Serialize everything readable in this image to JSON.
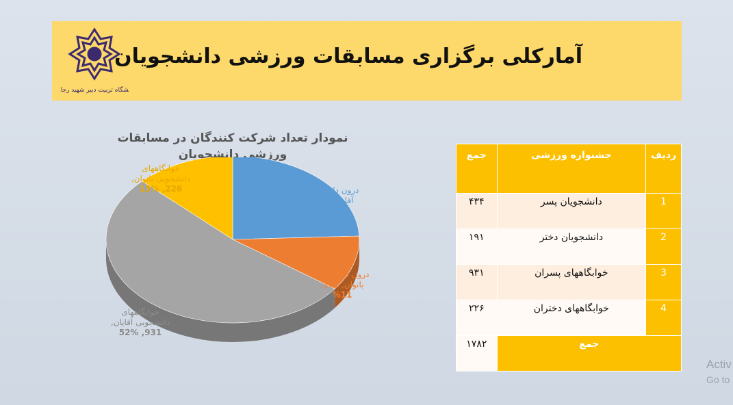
{
  "header": {
    "title": "آمارکلی برگزاری مسابقات ورزشی دانشجویان",
    "logo_text": "دانشگاه تربیت دبیر شهید رجایی"
  },
  "colors": {
    "header_bg": "#fdd86a",
    "table_header": "#fdc000",
    "slice_blue": "#5b9bd5",
    "slice_orange": "#ed7d31",
    "slice_gray": "#a5a5a5",
    "slice_yellow": "#ffc000",
    "logo": "#3b2a6e"
  },
  "chart_data": {
    "type": "pie",
    "title": "نمودار تعداد شرکت کنندگان در مسابقات ورزشی دانشجویان",
    "slices": [
      {
        "label": "درون دانشگاهی آقایان",
        "value": 434,
        "percent": "24%",
        "text1": "درون دانشگاهی",
        "text2": "آقایان, 434,",
        "text3": "%24"
      },
      {
        "label": "درون دانشگاهی بانوان",
        "value": 191,
        "percent": "11%",
        "text1": "درون دانشگاهی",
        "text2": "بانوان, 191,",
        "text3": "%11"
      },
      {
        "label": "خوابگاههای دانشجویی آقایان",
        "value": 931,
        "percent": "52%",
        "text1": "خوابگاههای",
        "text2": "دانشجویی آقایان,",
        "text3": "931, 52%"
      },
      {
        "label": "خوابگاههای دانشجویی بانوان",
        "value": 226,
        "percent": "13%",
        "text1": "خوابگاههای",
        "text2": "دانشجویی بانوان,",
        "text3": "226, 13%"
      }
    ]
  },
  "table": {
    "headers": [
      "ردیف",
      "جشنواره ورزشی",
      "جمع"
    ],
    "rows": [
      {
        "idx": "1",
        "name": "دانشجویان پسر",
        "total": "۴۳۴"
      },
      {
        "idx": "2",
        "name": "دانشجویان دختر",
        "total": "۱۹۱"
      },
      {
        "idx": "3",
        "name": "خوابگاههای پسران",
        "total": "۹۳۱"
      },
      {
        "idx": "4",
        "name": "خوابگاههای دختران",
        "total": "۲۲۶"
      }
    ],
    "sum_label": "جمع",
    "sum_value": "۱۷۸۲"
  },
  "watermark": {
    "line1": "Activ",
    "line2": "Go to"
  }
}
